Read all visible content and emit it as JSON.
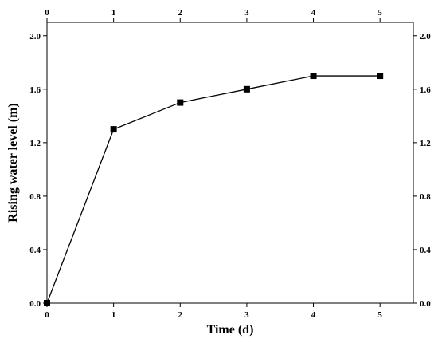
{
  "chart_data": {
    "type": "line",
    "title": "",
    "xlabel": "Time (d)",
    "ylabel": "Rising water level (m)",
    "x": [
      0,
      1,
      2,
      3,
      4,
      5
    ],
    "series": [
      {
        "values": [
          0.0,
          1.3,
          1.5,
          1.6,
          1.7,
          1.7
        ]
      }
    ],
    "xlim": [
      0,
      5.5
    ],
    "ylim": [
      0,
      2.1
    ],
    "x_ticks": [
      "0",
      "1",
      "2",
      "3",
      "4",
      "5"
    ],
    "y_ticks": [
      "0.0",
      "0.4",
      "0.8",
      "1.2",
      "1.6",
      "2.0"
    ],
    "marker": "square",
    "grid": false,
    "mirrored_axes": true,
    "line_color": "#000000"
  }
}
